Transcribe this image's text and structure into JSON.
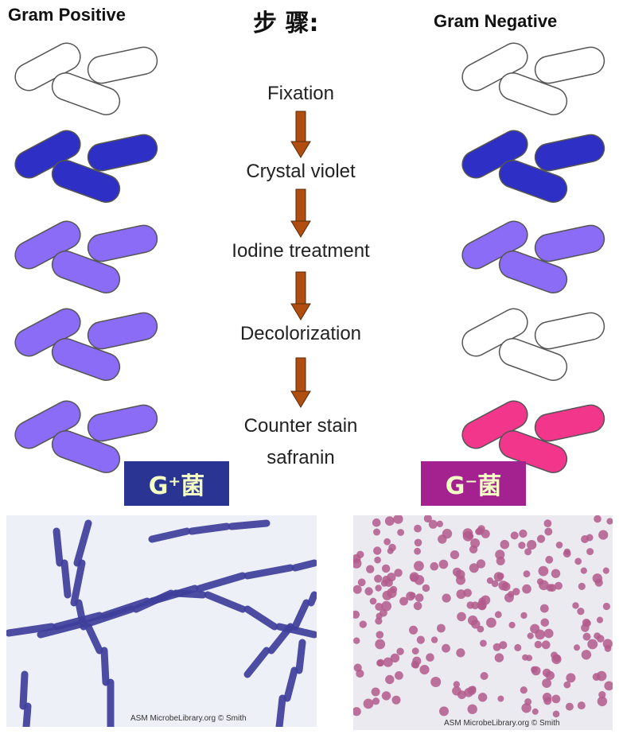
{
  "headers": {
    "left": "Gram Positive",
    "center": "步 骤:",
    "right": "Gram Negative"
  },
  "steps": [
    "Fixation",
    "Crystal violet",
    "Iodine treatment",
    "Decolorization",
    "Counter stain",
    "safranin"
  ],
  "badges": {
    "positive": "G⁺菌",
    "negative": "G⁻菌"
  },
  "photos": {
    "positive_credit": "ASM MicrobeLibrary.org © Smith",
    "negative_credit": "ASM MicrobeLibrary.org © Smith"
  },
  "colors": {
    "unstained": "#ffffff",
    "crystal_violet": "#2e2fc4",
    "iodine_purple": "#8a6cf7",
    "safranin_pink": "#f2368c",
    "arrow": "#b04e12",
    "badge_positive": "#2a3593",
    "badge_negative": "#a3228f"
  },
  "stains": {
    "gram_positive": [
      "unstained",
      "crystal_violet",
      "iodine_purple",
      "iodine_purple",
      "iodine_purple"
    ],
    "gram_negative": [
      "unstained",
      "crystal_violet",
      "iodine_purple",
      "unstained",
      "safranin_pink"
    ]
  }
}
